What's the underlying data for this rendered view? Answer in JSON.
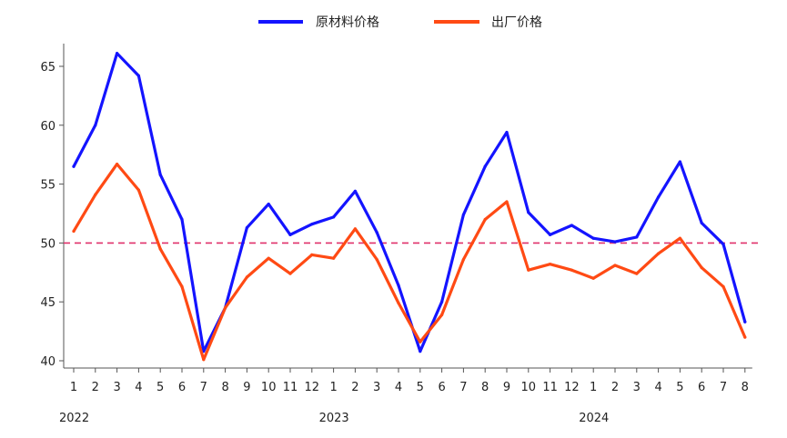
{
  "chart_data": {
    "type": "line",
    "title": "",
    "xlabel": "",
    "ylabel": "",
    "ylim": [
      40,
      67
    ],
    "yticks": [
      40,
      45,
      50,
      55,
      60,
      65
    ],
    "reference_line": {
      "value": 50,
      "color": "#e0306a",
      "style": "dashed"
    },
    "x": [
      "1",
      "2",
      "3",
      "4",
      "5",
      "6",
      "7",
      "8",
      "9",
      "10",
      "11",
      "12",
      "1",
      "2",
      "3",
      "4",
      "5",
      "6",
      "7",
      "8",
      "9",
      "10",
      "11",
      "12",
      "1",
      "2",
      "3",
      "4",
      "5",
      "6",
      "7",
      "8"
    ],
    "year_labels": [
      {
        "label": "2022",
        "index": 0
      },
      {
        "label": "2023",
        "index": 12
      },
      {
        "label": "2024",
        "index": 24
      }
    ],
    "legend": {
      "placement": "top-center"
    },
    "series": [
      {
        "name": "原材料价格",
        "color": "#1414ff",
        "values": [
          56.5,
          60.0,
          66.1,
          64.2,
          55.8,
          52.0,
          40.8,
          44.5,
          51.3,
          53.3,
          50.7,
          51.6,
          52.2,
          54.4,
          50.9,
          46.4,
          40.8,
          45.0,
          52.4,
          56.5,
          59.4,
          52.6,
          50.7,
          51.5,
          50.4,
          50.1,
          50.5,
          53.9,
          56.9,
          51.7,
          49.9,
          43.3
        ]
      },
      {
        "name": "出厂价格",
        "color": "#ff4a14",
        "values": [
          51.0,
          54.1,
          56.7,
          54.5,
          49.5,
          46.3,
          40.1,
          44.5,
          47.1,
          48.7,
          47.4,
          49.0,
          48.7,
          51.2,
          48.6,
          44.9,
          41.6,
          43.9,
          48.6,
          52.0,
          53.5,
          47.7,
          48.2,
          47.7,
          47.0,
          48.1,
          47.4,
          49.1,
          50.4,
          47.9,
          46.3,
          42.0
        ]
      }
    ]
  }
}
